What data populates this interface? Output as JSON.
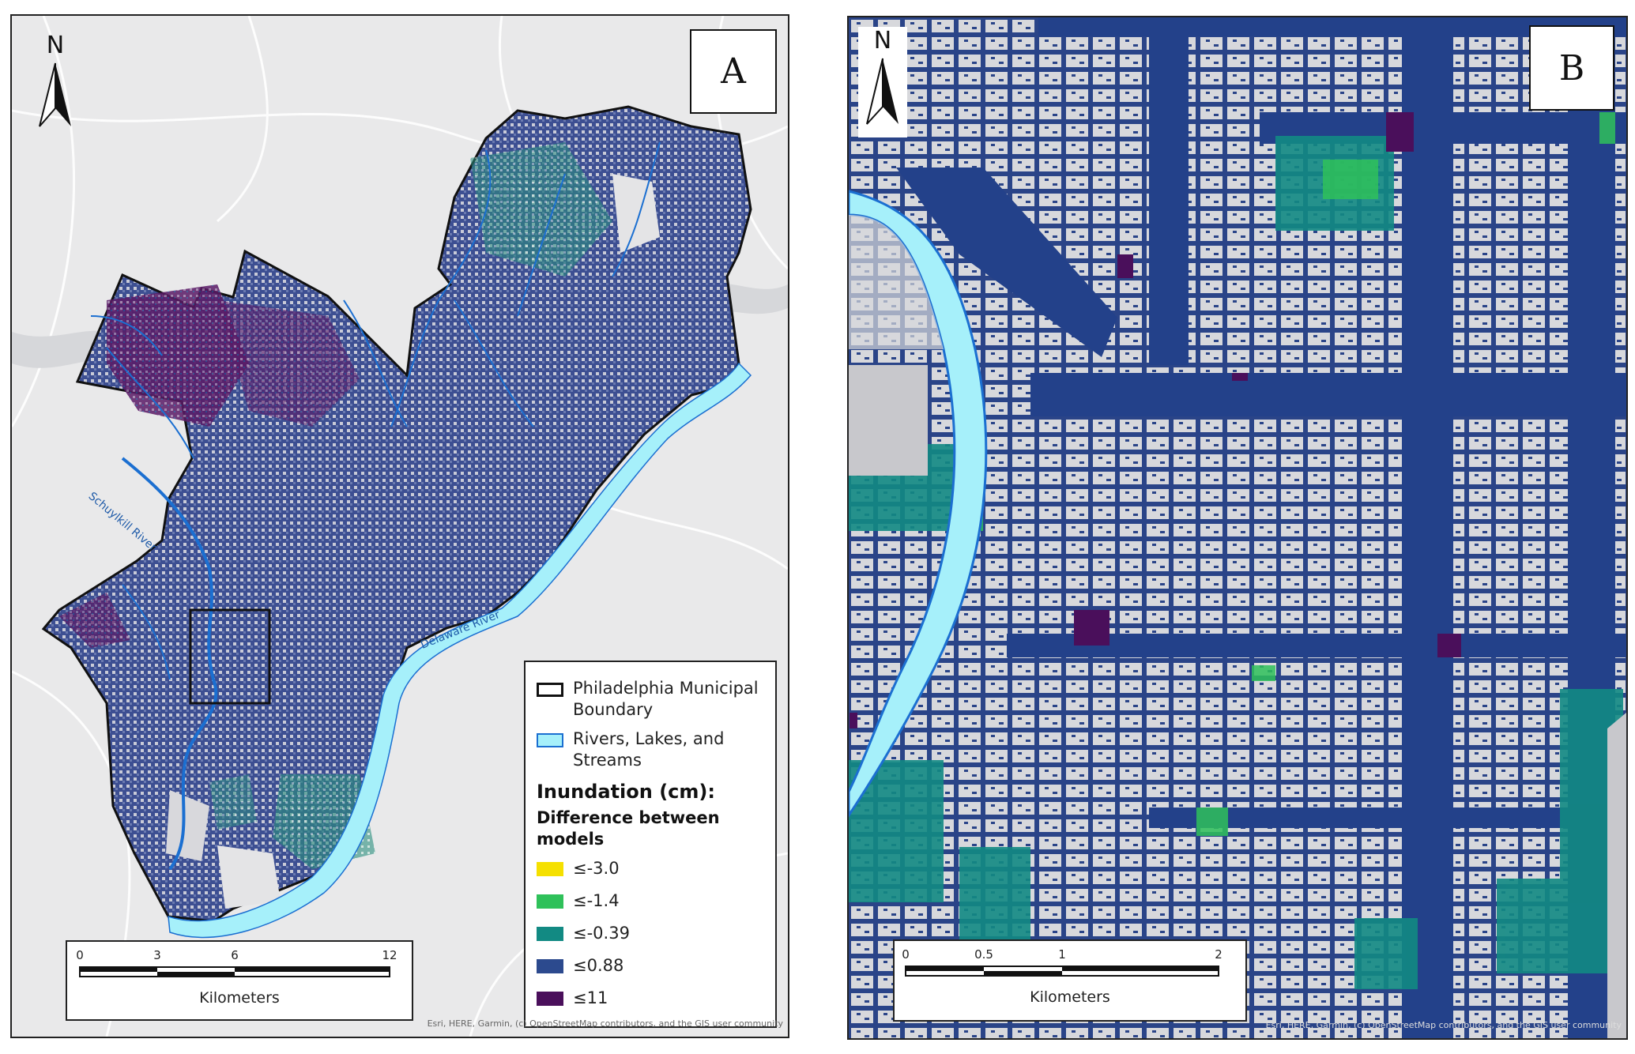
{
  "panels": {
    "a": {
      "letter": "A",
      "north_letter": "N",
      "river_labels": {
        "schuylkill": "Schuylkill River",
        "delaware": "Delaware River"
      },
      "legend": {
        "boundary_label": "Philadelphia Municipal Boundary",
        "water_label": "Rivers, Lakes, and Streams",
        "title": "Inundation (cm):",
        "subtitle": "Difference between models",
        "classes": [
          {
            "label": "≤-3.0",
            "color": "#f5e000"
          },
          {
            "label": "≤-1.4",
            "color": "#2fc15a"
          },
          {
            "label": "≤-0.39",
            "color": "#128a83"
          },
          {
            "label": "≤0.88",
            "color": "#2c4a8e"
          },
          {
            "label": "≤11",
            "color": "#4a0f5b"
          }
        ],
        "water_color": "#a6f0fa",
        "water_outline": "#1b6fd1"
      },
      "scale": {
        "ticks": [
          "0",
          "3",
          "6",
          "12"
        ],
        "unit": "Kilometers"
      },
      "attribution": "Esri, HERE, Garmin, (c) OpenStreetMap contributors, and the GIS user community"
    },
    "b": {
      "letter": "B",
      "north_letter": "N",
      "scale": {
        "ticks": [
          "0",
          "0.5",
          "1",
          "2"
        ],
        "unit": "Kilometers"
      },
      "attribution": "Esri, HERE, Garmin, (c) OpenStreetMap contributors, and the GIS user community"
    }
  }
}
